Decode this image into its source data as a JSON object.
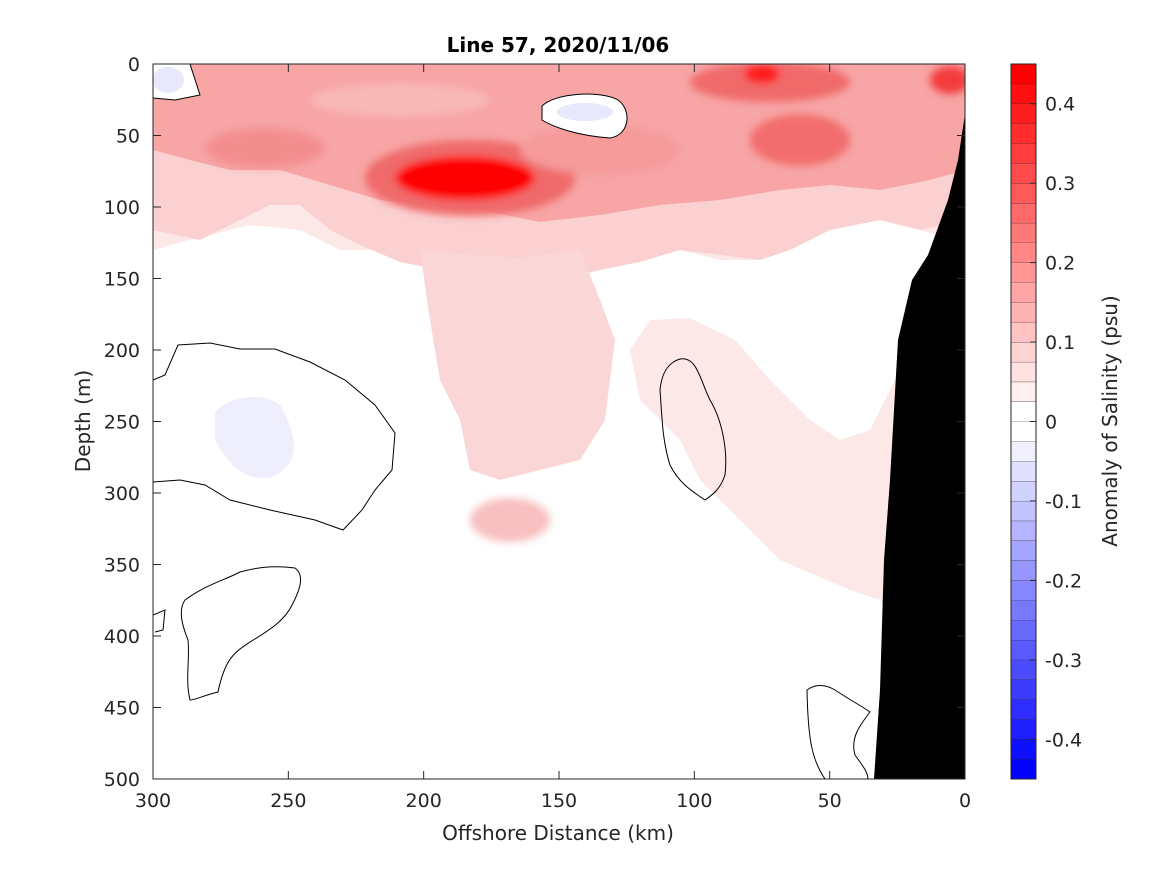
{
  "chart_data": {
    "type": "heatmap",
    "subtype": "filled-contour section",
    "title": "Line 57, 2020/11/06",
    "xlabel": "Offshore Distance (km)",
    "ylabel": "Depth (m)",
    "colorbar_label": "Anomaly of Salinity (psu)",
    "xlim": [
      300,
      0
    ],
    "x_reversed": true,
    "ylim": [
      0,
      500
    ],
    "y_reversed": true,
    "x_ticks": [
      300,
      250,
      200,
      150,
      100,
      50,
      0
    ],
    "y_ticks": [
      0,
      50,
      100,
      150,
      200,
      250,
      300,
      350,
      400,
      450,
      500
    ],
    "colorbar_range": [
      -0.45,
      0.45
    ],
    "colorbar_ticks": [
      "0.4",
      "0.3",
      "0.2",
      "0.1",
      "0",
      "-0.1",
      "-0.2",
      "-0.3",
      "-0.4"
    ],
    "colorbar_tick_values": [
      0.4,
      0.3,
      0.2,
      0.1,
      0,
      -0.1,
      -0.2,
      -0.3,
      -0.4
    ],
    "contour_interval": 0.025,
    "colormap": {
      "negative": "#0000ff",
      "zero": "#ffffff",
      "positive": "#ff0000"
    },
    "bathymetry_color": "#000000",
    "zero_contour_color": "#000000",
    "features": [
      {
        "kind": "max",
        "x": 178,
        "y": 80,
        "value": 0.43
      },
      {
        "kind": "max",
        "x": 75,
        "y": 8,
        "value": 0.42
      },
      {
        "kind": "max",
        "x": 60,
        "y": 55,
        "value": 0.35
      },
      {
        "kind": "max",
        "x": 2,
        "y": 8,
        "value": 0.38
      },
      {
        "kind": "max",
        "x": 255,
        "y": 55,
        "value": 0.28
      },
      {
        "kind": "max",
        "x": 295,
        "y": 60,
        "value": 0.2
      },
      {
        "kind": "max",
        "x": 220,
        "y": 35,
        "value": 0.25
      },
      {
        "kind": "max",
        "x": 172,
        "y": 322,
        "value": 0.1
      },
      {
        "kind": "min",
        "x": 140,
        "y": 33,
        "value": -0.03
      },
      {
        "kind": "min",
        "x": 293,
        "y": 13,
        "value": -0.03
      },
      {
        "kind": "min",
        "x": 260,
        "y": 255,
        "value": -0.02
      }
    ]
  }
}
